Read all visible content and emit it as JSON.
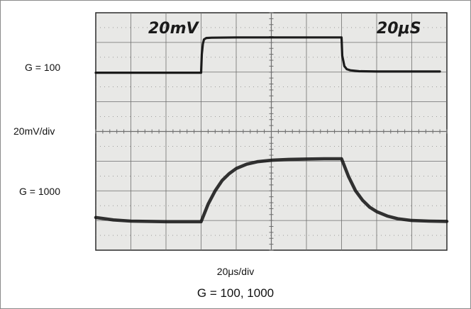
{
  "labels": {
    "upper_trace": "G = 100",
    "scale": "20mV/div",
    "lower_trace": "G = 1000",
    "xlabel": "20μs/div",
    "caption": "G = 100, 1000"
  },
  "screen_text": {
    "volts": "20mV",
    "time": "20μS"
  },
  "colors": {
    "screen": "#e8e8e6",
    "trace": "#111111",
    "grid": "#6e6e6e",
    "border": "#8a8a8a"
  },
  "chart_data": {
    "type": "line",
    "title": "G = 100, 1000",
    "xlabel": "20μs/div",
    "ylabel": "20mV/div",
    "grid": true,
    "x_divisions": 10,
    "y_divisions": 8,
    "xlim": [
      0,
      10
    ],
    "ylim": [
      0,
      8
    ],
    "series": [
      {
        "name": "G = 100",
        "x": [
          0,
          1,
          2,
          3,
          3.02,
          3.05,
          3.08,
          3.15,
          3.3,
          4,
          5,
          6,
          7,
          7.02,
          7.08,
          7.15,
          7.25,
          7.5,
          8,
          9,
          9.8
        ],
        "y": [
          5.98,
          5.98,
          5.98,
          5.98,
          6.6,
          6.95,
          7.1,
          7.15,
          7.16,
          7.17,
          7.17,
          7.17,
          7.17,
          6.55,
          6.2,
          6.1,
          6.06,
          6.03,
          6.02,
          6.02,
          6.02
        ]
      },
      {
        "name": "G = 1000",
        "x": [
          0,
          0.5,
          1,
          2,
          3,
          3.2,
          3.4,
          3.6,
          3.8,
          4,
          4.3,
          4.6,
          5,
          5.5,
          6,
          6.5,
          7,
          7.2,
          7.4,
          7.6,
          7.8,
          8,
          8.3,
          8.6,
          9,
          9.5,
          10
        ],
        "y": [
          1.1,
          1.02,
          0.98,
          0.96,
          0.96,
          1.55,
          2.0,
          2.35,
          2.58,
          2.75,
          2.9,
          2.98,
          3.03,
          3.06,
          3.07,
          3.08,
          3.08,
          2.48,
          2.0,
          1.68,
          1.45,
          1.3,
          1.15,
          1.06,
          1.0,
          0.98,
          0.97
        ]
      }
    ]
  }
}
